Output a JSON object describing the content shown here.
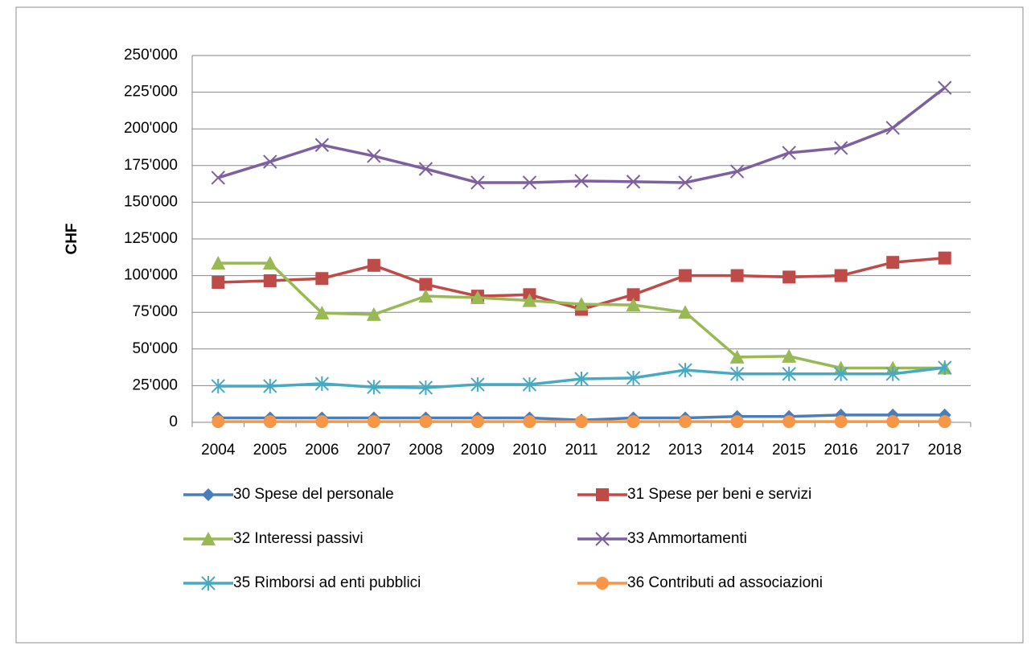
{
  "chart_data": {
    "type": "line",
    "y_label": "CHF",
    "categories": [
      "2004",
      "2005",
      "2006",
      "2007",
      "2008",
      "2009",
      "2010",
      "2011",
      "2012",
      "2013",
      "2014",
      "2015",
      "2016",
      "2017",
      "2018"
    ],
    "ylim": [
      0,
      250000
    ],
    "yticks": [
      0,
      {
        "value": 25000,
        "label": "25'000"
      },
      {
        "value": 50000,
        "label": "50'000"
      },
      {
        "value": 75000,
        "label": "75'000"
      },
      {
        "value": 100000,
        "label": "100'000"
      },
      {
        "value": 125000,
        "label": "125'000"
      },
      {
        "value": 150000,
        "label": "150'000"
      },
      {
        "value": 175000,
        "label": "175'000"
      },
      {
        "value": 200000,
        "label": "200'000"
      },
      {
        "value": 225000,
        "label": "225'000"
      },
      {
        "value": 250000,
        "label": "250'000"
      }
    ],
    "grid": true,
    "series": [
      {
        "name": "30 Spese del personale",
        "color": "#4a7ebb",
        "marker": "diamond",
        "values": [
          3000,
          3000,
          3000,
          3000,
          3000,
          3000,
          3000,
          1500,
          3000,
          3000,
          4000,
          4000,
          5000,
          5000,
          5000
        ]
      },
      {
        "name": "31 Spese per beni e servizi",
        "color": "#be4b48",
        "marker": "square",
        "values": [
          95400,
          96500,
          98000,
          107000,
          94000,
          86000,
          87000,
          77000,
          87000,
          100000,
          100000,
          99000,
          100000,
          109000,
          112000
        ]
      },
      {
        "name": "32 Interessi passivi",
        "color": "#98b954",
        "marker": "triangle",
        "values": [
          108500,
          108500,
          74500,
          73500,
          86000,
          85000,
          83000,
          80500,
          80000,
          75000,
          44500,
          45000,
          37000,
          37000,
          37000
        ]
      },
      {
        "name": "33 Ammortamenti",
        "color": "#7d60a0",
        "marker": "x",
        "values": [
          166700,
          177600,
          189000,
          181500,
          172700,
          163400,
          163400,
          164500,
          164000,
          163400,
          171000,
          183700,
          187000,
          200700,
          228000
        ]
      },
      {
        "name": "35 Rimborsi ad enti pubblici",
        "color": "#46aac5",
        "marker": "star",
        "values": [
          24700,
          24700,
          26300,
          24000,
          23600,
          25800,
          25800,
          29600,
          30200,
          35600,
          33000,
          33000,
          33000,
          33000,
          37300
        ]
      },
      {
        "name": "36 Contributi ad associazioni",
        "color": "#f79646",
        "marker": "circle",
        "values": [
          500,
          500,
          500,
          500,
          500,
          500,
          500,
          500,
          500,
          500,
          500,
          500,
          500,
          500,
          500
        ]
      }
    ]
  }
}
